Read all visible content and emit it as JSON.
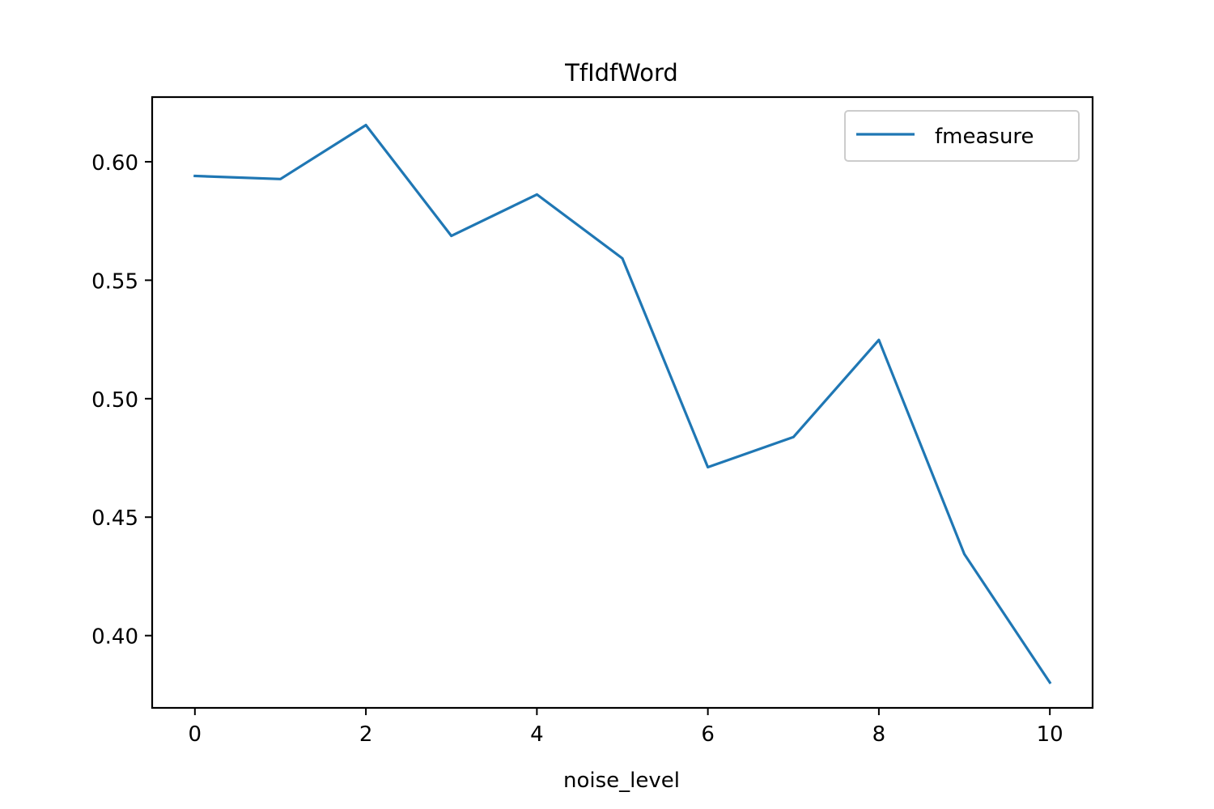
{
  "chart_data": {
    "type": "line",
    "title": "TfIdfWord",
    "xlabel": "noise_level",
    "ylabel": "",
    "x": [
      0,
      1,
      2,
      3,
      4,
      5,
      6,
      7,
      8,
      9,
      10
    ],
    "series": [
      {
        "name": "fmeasure",
        "color": "#1f77b4",
        "values": [
          0.594,
          0.5927,
          0.6155,
          0.5687,
          0.5862,
          0.5592,
          0.4711,
          0.4838,
          0.5248,
          0.4344,
          0.3802
        ]
      }
    ],
    "xlim": [
      -0.5,
      10.5
    ],
    "ylim": [
      0.3695,
      0.6273
    ],
    "xticks": [
      0,
      2,
      4,
      6,
      8,
      10
    ],
    "xtick_labels": [
      "0",
      "2",
      "4",
      "6",
      "8",
      "10"
    ],
    "yticks": [
      0.4,
      0.45,
      0.5,
      0.55,
      0.6
    ],
    "ytick_labels": [
      "0.40",
      "0.45",
      "0.50",
      "0.55",
      "0.60"
    ],
    "grid": false,
    "legend_position": "top-right"
  }
}
